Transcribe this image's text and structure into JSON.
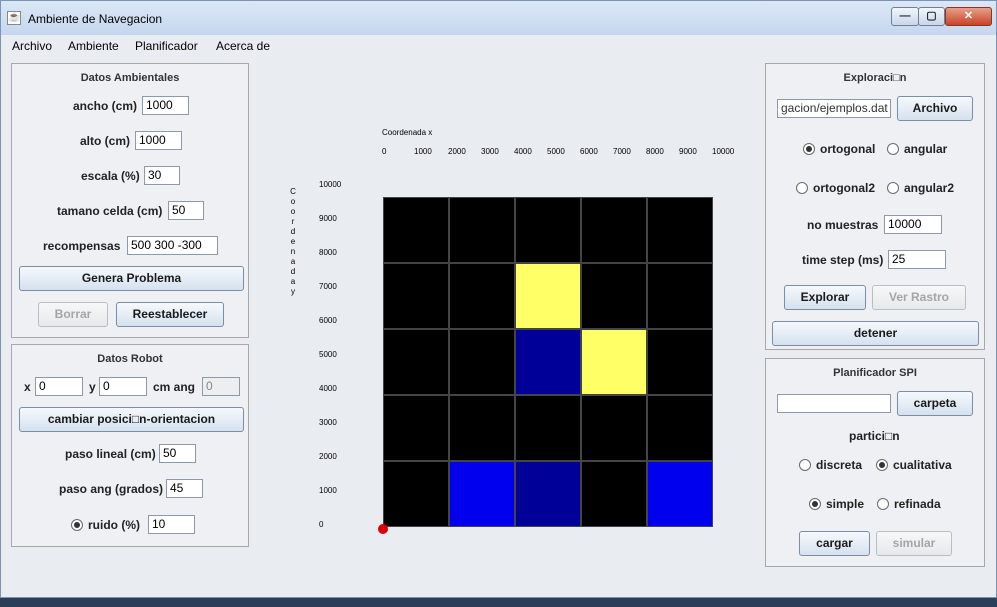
{
  "window": {
    "title": "Ambiente de Navegacion",
    "min": "—",
    "max": "▢",
    "close": "✕"
  },
  "menu": [
    "Archivo",
    "Ambiente",
    "Planificador",
    "Acerca de"
  ],
  "datos_ambientales": {
    "title": "Datos Ambientales",
    "ancho_label": "ancho (cm)",
    "ancho": "1000",
    "alto_label": "alto (cm)",
    "alto": "1000",
    "escala_label": "escala (%)",
    "escala": "30",
    "celda_label": "tamano celda (cm)",
    "celda": "50",
    "recompensas_label": "recompensas",
    "recompensas": "500 300 -300",
    "genera": "Genera Problema",
    "borrar": "Borrar",
    "reestablecer": "Reestablecer"
  },
  "datos_robot": {
    "title": "Datos Robot",
    "x_label": "x",
    "x": "0",
    "y_label": "y",
    "y": "0",
    "cm_ang_label": "cm  ang",
    "ang": "0",
    "cambiar": "cambiar posici□n-orientacion",
    "paso_lineal_label": "paso lineal (cm)",
    "paso_lineal": "50",
    "paso_ang_label": "paso ang (grados)",
    "paso_ang": "45",
    "ruido_label": "ruido   (%)",
    "ruido": "10"
  },
  "grid": {
    "x_title": "Coordenada x",
    "x_ticks": [
      "0",
      "1000",
      "2000",
      "3000",
      "4000",
      "5000",
      "6000",
      "7000",
      "8000",
      "9000",
      "10000"
    ],
    "y_ticks": [
      "10000",
      "9000",
      "8000",
      "7000",
      "6000",
      "5000",
      "4000",
      "3000",
      "2000",
      "1000",
      "0"
    ],
    "y_title": "C o o r d e n a d a   y",
    "cells": [
      [
        "#000000",
        "#000000",
        "#000000",
        "#000000",
        "#000000"
      ],
      [
        "#000000",
        "#000000",
        "#ffff66",
        "#000000",
        "#000000"
      ],
      [
        "#000000",
        "#000000",
        "#000099",
        "#ffff66",
        "#000000"
      ],
      [
        "#000000",
        "#000000",
        "#000000",
        "#000000",
        "#000000"
      ],
      [
        "#000000",
        "#0000ee",
        "#000099",
        "#000000",
        "#0000ee"
      ]
    ],
    "robot_color": "#dd0000"
  },
  "exploracion": {
    "title": "Exploraci□n",
    "file": "gacion/ejemplos.dat",
    "archivo": "Archivo",
    "ortogonal": "ortogonal",
    "angular": "angular",
    "ortogonal2": "ortogonal2",
    "angular2": "angular2",
    "muestras_label": "no muestras",
    "muestras": "10000",
    "timestep_label": "time step (ms)",
    "timestep": "25",
    "explorar": "Explorar",
    "rastro": "Ver Rastro",
    "detener": "detener"
  },
  "planificador": {
    "title": "Planificador SPI",
    "carpeta_value": "",
    "carpeta": "carpeta",
    "particion": "partici□n",
    "discreta": "discreta",
    "cualitativa": "cualitativa",
    "simple": "simple",
    "refinada": "refinada",
    "cargar": "cargar",
    "simular": "simular"
  }
}
